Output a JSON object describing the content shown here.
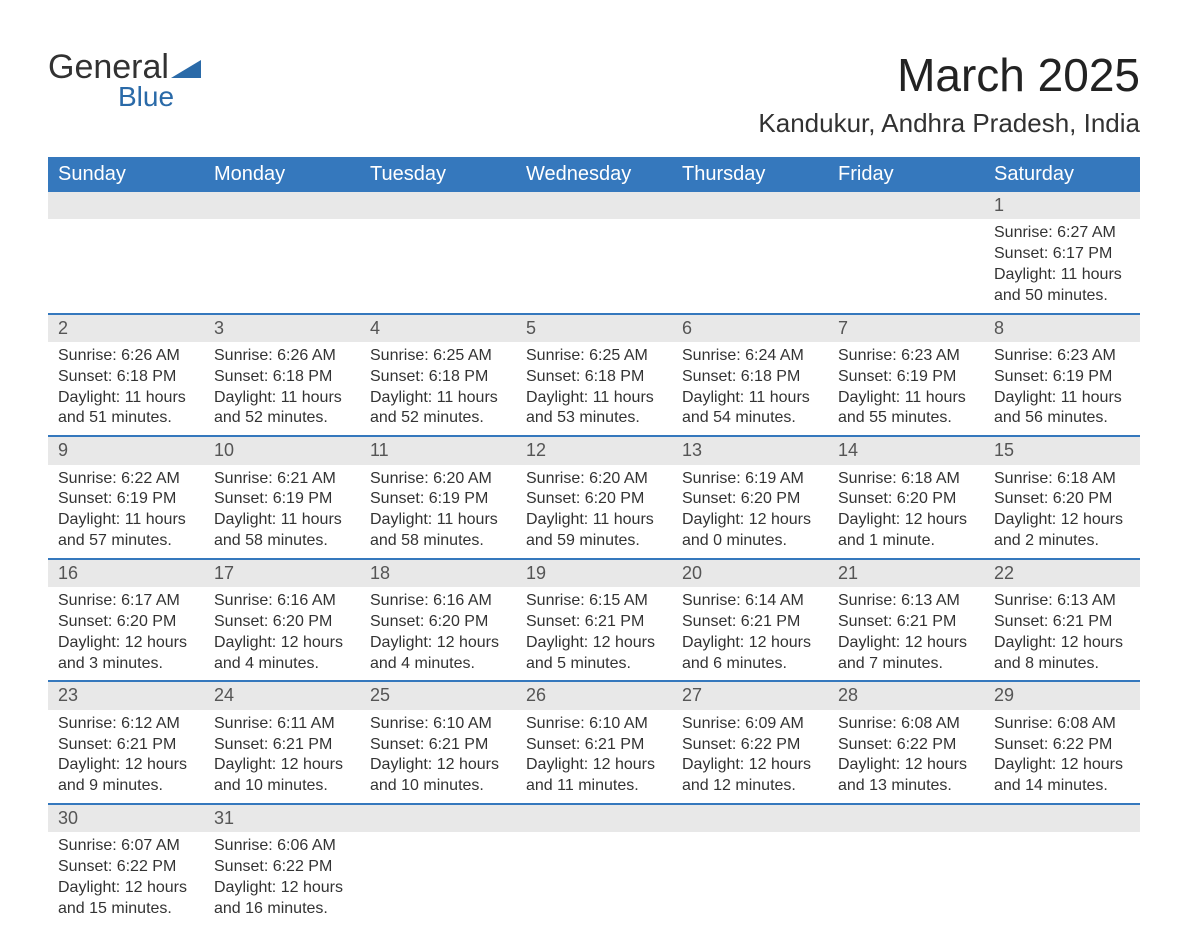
{
  "logo": {
    "text1": "General",
    "text2": "Blue",
    "icon_color": "#2a6aa8",
    "text1_color": "#323232"
  },
  "title": {
    "month": "March 2025",
    "location": "Kandukur, Andhra Pradesh, India"
  },
  "colors": {
    "header_bg": "#3578bd",
    "header_text": "#ffffff",
    "daynum_bg": "#e8e8e8",
    "daynum_text": "#555555",
    "body_text": "#333333",
    "row_border": "#3578bd"
  },
  "weekdays": [
    "Sunday",
    "Monday",
    "Tuesday",
    "Wednesday",
    "Thursday",
    "Friday",
    "Saturday"
  ],
  "weeks": [
    [
      null,
      null,
      null,
      null,
      null,
      null,
      {
        "n": "1",
        "sr": "6:27 AM",
        "ss": "6:17 PM",
        "dl": "11 hours and 50 minutes."
      }
    ],
    [
      {
        "n": "2",
        "sr": "6:26 AM",
        "ss": "6:18 PM",
        "dl": "11 hours and 51 minutes."
      },
      {
        "n": "3",
        "sr": "6:26 AM",
        "ss": "6:18 PM",
        "dl": "11 hours and 52 minutes."
      },
      {
        "n": "4",
        "sr": "6:25 AM",
        "ss": "6:18 PM",
        "dl": "11 hours and 52 minutes."
      },
      {
        "n": "5",
        "sr": "6:25 AM",
        "ss": "6:18 PM",
        "dl": "11 hours and 53 minutes."
      },
      {
        "n": "6",
        "sr": "6:24 AM",
        "ss": "6:18 PM",
        "dl": "11 hours and 54 minutes."
      },
      {
        "n": "7",
        "sr": "6:23 AM",
        "ss": "6:19 PM",
        "dl": "11 hours and 55 minutes."
      },
      {
        "n": "8",
        "sr": "6:23 AM",
        "ss": "6:19 PM",
        "dl": "11 hours and 56 minutes."
      }
    ],
    [
      {
        "n": "9",
        "sr": "6:22 AM",
        "ss": "6:19 PM",
        "dl": "11 hours and 57 minutes."
      },
      {
        "n": "10",
        "sr": "6:21 AM",
        "ss": "6:19 PM",
        "dl": "11 hours and 58 minutes."
      },
      {
        "n": "11",
        "sr": "6:20 AM",
        "ss": "6:19 PM",
        "dl": "11 hours and 58 minutes."
      },
      {
        "n": "12",
        "sr": "6:20 AM",
        "ss": "6:20 PM",
        "dl": "11 hours and 59 minutes."
      },
      {
        "n": "13",
        "sr": "6:19 AM",
        "ss": "6:20 PM",
        "dl": "12 hours and 0 minutes."
      },
      {
        "n": "14",
        "sr": "6:18 AM",
        "ss": "6:20 PM",
        "dl": "12 hours and 1 minute."
      },
      {
        "n": "15",
        "sr": "6:18 AM",
        "ss": "6:20 PM",
        "dl": "12 hours and 2 minutes."
      }
    ],
    [
      {
        "n": "16",
        "sr": "6:17 AM",
        "ss": "6:20 PM",
        "dl": "12 hours and 3 minutes."
      },
      {
        "n": "17",
        "sr": "6:16 AM",
        "ss": "6:20 PM",
        "dl": "12 hours and 4 minutes."
      },
      {
        "n": "18",
        "sr": "6:16 AM",
        "ss": "6:20 PM",
        "dl": "12 hours and 4 minutes."
      },
      {
        "n": "19",
        "sr": "6:15 AM",
        "ss": "6:21 PM",
        "dl": "12 hours and 5 minutes."
      },
      {
        "n": "20",
        "sr": "6:14 AM",
        "ss": "6:21 PM",
        "dl": "12 hours and 6 minutes."
      },
      {
        "n": "21",
        "sr": "6:13 AM",
        "ss": "6:21 PM",
        "dl": "12 hours and 7 minutes."
      },
      {
        "n": "22",
        "sr": "6:13 AM",
        "ss": "6:21 PM",
        "dl": "12 hours and 8 minutes."
      }
    ],
    [
      {
        "n": "23",
        "sr": "6:12 AM",
        "ss": "6:21 PM",
        "dl": "12 hours and 9 minutes."
      },
      {
        "n": "24",
        "sr": "6:11 AM",
        "ss": "6:21 PM",
        "dl": "12 hours and 10 minutes."
      },
      {
        "n": "25",
        "sr": "6:10 AM",
        "ss": "6:21 PM",
        "dl": "12 hours and 10 minutes."
      },
      {
        "n": "26",
        "sr": "6:10 AM",
        "ss": "6:21 PM",
        "dl": "12 hours and 11 minutes."
      },
      {
        "n": "27",
        "sr": "6:09 AM",
        "ss": "6:22 PM",
        "dl": "12 hours and 12 minutes."
      },
      {
        "n": "28",
        "sr": "6:08 AM",
        "ss": "6:22 PM",
        "dl": "12 hours and 13 minutes."
      },
      {
        "n": "29",
        "sr": "6:08 AM",
        "ss": "6:22 PM",
        "dl": "12 hours and 14 minutes."
      }
    ],
    [
      {
        "n": "30",
        "sr": "6:07 AM",
        "ss": "6:22 PM",
        "dl": "12 hours and 15 minutes."
      },
      {
        "n": "31",
        "sr": "6:06 AM",
        "ss": "6:22 PM",
        "dl": "12 hours and 16 minutes."
      },
      null,
      null,
      null,
      null,
      null
    ]
  ],
  "labels": {
    "sunrise": "Sunrise: ",
    "sunset": "Sunset: ",
    "daylight": "Daylight: "
  }
}
